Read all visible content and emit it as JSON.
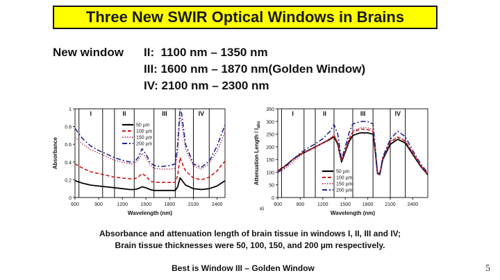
{
  "slide": {
    "title": "Three New SWIR Optical Windows in Brains",
    "window_line1_prefix": "New window",
    "window_line1": "II:  1100 nm – 1350 nm",
    "window_line2": "III: 1600 nm – 1870 nm(Golden Window)",
    "window_line3": "IV: 2100 nm – 2300 nm",
    "caption_line1": "Absorbance and attenuation length of brain tissue in windows I, II, III and IV;",
    "caption_line2": "Brain tissue thicknesses were 50, 100, 150, and 200 µm respectively.",
    "footer": "Best is Window III – Golden Window",
    "page_number": "5",
    "colors": {
      "title_bg": "#ffff00",
      "s50": "#000000",
      "s100": "#cc1111",
      "s150": "#aa3355",
      "s200": "#22228a"
    }
  },
  "chart_data": [
    {
      "type": "line",
      "xlabel": "Wavelength (nm)",
      "ylabel": "Absorbance",
      "xlim": [
        600,
        2500
      ],
      "ylim": [
        0,
        1
      ],
      "xticks": [
        "600",
        "900",
        "1200",
        "1500",
        "1800",
        "2100",
        "2400"
      ],
      "yticks": [
        "0",
        "0.2",
        "0.4",
        "0.6",
        "0.8",
        "1"
      ],
      "windows": [
        {
          "label": "I",
          "x": [
            650,
            950
          ]
        },
        {
          "label": "II",
          "x": [
            1100,
            1350
          ]
        },
        {
          "label": "III",
          "x": [
            1600,
            1870
          ]
        },
        {
          "label": "IV",
          "x": [
            2100,
            2300
          ]
        }
      ],
      "legend": [
        "50 µm",
        "100 µm",
        "150 µm",
        "200 µm"
      ],
      "x": [
        600,
        700,
        800,
        900,
        1000,
        1100,
        1200,
        1300,
        1350,
        1400,
        1450,
        1500,
        1550,
        1600,
        1700,
        1800,
        1870,
        1900,
        1930,
        1950,
        2000,
        2100,
        2200,
        2300,
        2400,
        2450,
        2500
      ],
      "series": [
        {
          "name": "50 µm",
          "values": [
            0.19,
            0.16,
            0.14,
            0.13,
            0.12,
            0.11,
            0.1,
            0.09,
            0.09,
            0.1,
            0.12,
            0.11,
            0.09,
            0.08,
            0.08,
            0.08,
            0.08,
            0.12,
            0.22,
            0.2,
            0.14,
            0.1,
            0.09,
            0.1,
            0.13,
            0.16,
            0.19
          ]
        },
        {
          "name": "100 µm",
          "values": [
            0.38,
            0.33,
            0.29,
            0.27,
            0.25,
            0.23,
            0.22,
            0.21,
            0.21,
            0.23,
            0.27,
            0.24,
            0.19,
            0.17,
            0.17,
            0.17,
            0.17,
            0.25,
            0.45,
            0.4,
            0.3,
            0.22,
            0.2,
            0.23,
            0.3,
            0.36,
            0.41
          ]
        },
        {
          "name": "150 µm",
          "values": [
            0.68,
            0.6,
            0.54,
            0.5,
            0.46,
            0.42,
            0.4,
            0.38,
            0.38,
            0.42,
            0.5,
            0.45,
            0.37,
            0.33,
            0.32,
            0.32,
            0.33,
            0.5,
            0.92,
            0.85,
            0.55,
            0.36,
            0.32,
            0.38,
            0.52,
            0.63,
            0.74
          ]
        },
        {
          "name": "200 µm",
          "values": [
            0.78,
            0.66,
            0.58,
            0.53,
            0.49,
            0.45,
            0.42,
            0.4,
            0.4,
            0.45,
            0.55,
            0.49,
            0.4,
            0.36,
            0.35,
            0.36,
            0.38,
            0.6,
            1.0,
            0.95,
            0.6,
            0.38,
            0.34,
            0.41,
            0.58,
            0.7,
            0.82
          ]
        }
      ]
    },
    {
      "type": "line",
      "xlabel": "Wavelength (nm)",
      "ylabel": "Attenuation Length / l",
      "ylabel_sub": "abs",
      "panel_label": "a)",
      "xlim": [
        600,
        2600
      ],
      "ylim": [
        0,
        350
      ],
      "xticks": [
        "600",
        "900",
        "1200",
        "1500",
        "1800",
        "2100",
        "2400"
      ],
      "yticks": [
        "0",
        "50",
        "100",
        "150",
        "200",
        "250",
        "300",
        "350"
      ],
      "windows": [
        {
          "label": "I",
          "x": [
            650,
            950
          ]
        },
        {
          "label": "II",
          "x": [
            1100,
            1350
          ]
        },
        {
          "label": "III",
          "x": [
            1600,
            1870
          ]
        },
        {
          "label": "IV",
          "x": [
            2100,
            2300
          ]
        }
      ],
      "legend": [
        "50 µm",
        "100 µm",
        "150 µm",
        "200 µm"
      ],
      "x": [
        600,
        700,
        800,
        900,
        1000,
        1100,
        1200,
        1300,
        1350,
        1400,
        1450,
        1500,
        1550,
        1600,
        1700,
        1800,
        1870,
        1900,
        1930,
        1960,
        2000,
        2100,
        2200,
        2300,
        2400,
        2500,
        2600
      ],
      "series": [
        {
          "name": "50 µm",
          "values": [
            105,
            125,
            150,
            170,
            185,
            200,
            215,
            230,
            240,
            210,
            140,
            180,
            220,
            245,
            255,
            255,
            250,
            180,
            95,
            90,
            150,
            210,
            230,
            215,
            170,
            125,
            90
          ]
        },
        {
          "name": "100 µm",
          "values": [
            105,
            125,
            150,
            170,
            185,
            200,
            215,
            232,
            245,
            215,
            145,
            185,
            230,
            258,
            270,
            268,
            260,
            185,
            95,
            90,
            155,
            218,
            238,
            222,
            175,
            128,
            92
          ]
        },
        {
          "name": "150 µm",
          "values": [
            98,
            115,
            140,
            165,
            182,
            198,
            215,
            235,
            248,
            218,
            145,
            188,
            235,
            262,
            275,
            275,
            268,
            188,
            97,
            92,
            158,
            222,
            240,
            225,
            178,
            130,
            95
          ]
        },
        {
          "name": "200 µm",
          "values": [
            100,
            120,
            150,
            175,
            195,
            212,
            232,
            262,
            288,
            250,
            150,
            200,
            255,
            290,
            300,
            300,
            290,
            200,
            100,
            95,
            160,
            230,
            262,
            240,
            185,
            135,
            97
          ]
        }
      ]
    }
  ]
}
